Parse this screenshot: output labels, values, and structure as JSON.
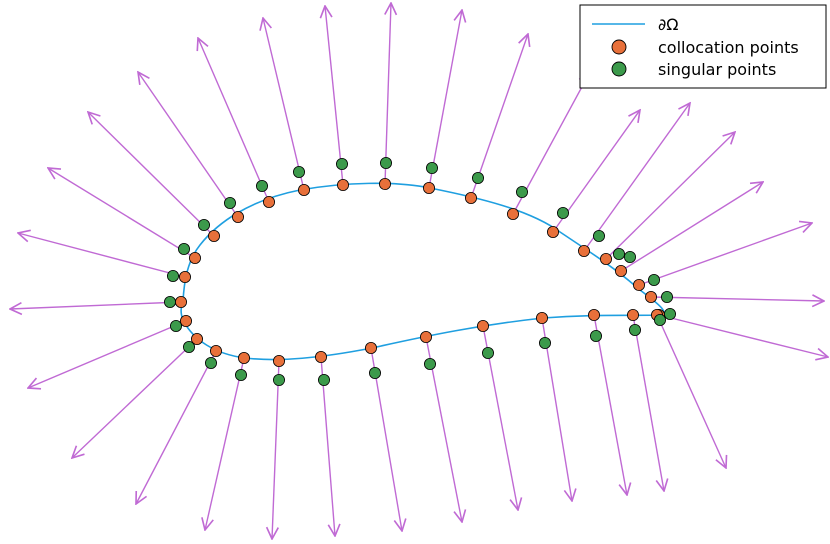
{
  "legend": {
    "boundary_label": "∂Ω",
    "collocation_label": "collocation points",
    "singular_label": "singular points"
  },
  "colors": {
    "boundary": "#1f9fe0",
    "collocation": "#e8703a",
    "singular": "#3c9a4b",
    "arrow": "#c06ad4",
    "marker_edge": "#000000"
  },
  "chart_data": {
    "type": "scatter",
    "note_free": true,
    "grid": false,
    "legend_placement": "top-right",
    "series": [
      {
        "name": "∂Ω",
        "kind": "line"
      },
      {
        "name": "collocation points",
        "kind": "marker"
      },
      {
        "name": "singular points",
        "kind": "marker"
      }
    ]
  }
}
